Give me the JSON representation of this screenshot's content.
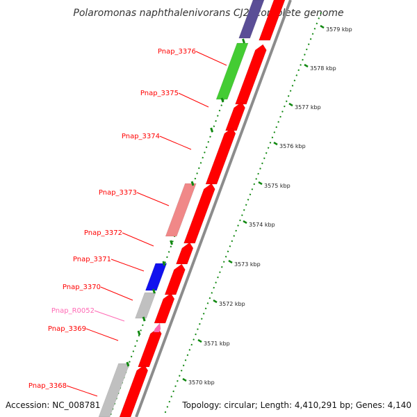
{
  "title": "Polaromonas naphthalenivorans CJ2, complete genome",
  "accession": "Accession: NC_008781",
  "summary": "Topology: circular; Length: 4,410,291 bp; Genes: 4,140",
  "colors": {
    "cds": "#ff0000",
    "rna": "#ff69b4",
    "cog_green": "#44cc33",
    "cog_pink": "#f08888",
    "cog_blue": "#1111ee",
    "cog_grey": "#c0c0c0",
    "cog_navy": "#5a4e96",
    "tick_green": "#118811",
    "backbone": "#8c8c8c"
  },
  "gene_labels": [
    {
      "name": "Pnap_3376",
      "type": "cds"
    },
    {
      "name": "Pnap_3375",
      "type": "cds"
    },
    {
      "name": "Pnap_3374",
      "type": "cds"
    },
    {
      "name": "Pnap_3373",
      "type": "cds"
    },
    {
      "name": "Pnap_3372",
      "type": "cds"
    },
    {
      "name": "Pnap_3371",
      "type": "cds"
    },
    {
      "name": "Pnap_3370",
      "type": "cds"
    },
    {
      "name": "Pnap_R0052",
      "type": "rna"
    },
    {
      "name": "Pnap_3369",
      "type": "cds"
    },
    {
      "name": "Pnap_3368",
      "type": "cds"
    }
  ],
  "kbp_ticks": [
    "3579 kbp",
    "3578 kbp",
    "3577 kbp",
    "3576 kbp",
    "3575 kbp",
    "3574 kbp",
    "3573 kbp",
    "3572 kbp",
    "3571 kbp",
    "3570 kbp"
  ]
}
